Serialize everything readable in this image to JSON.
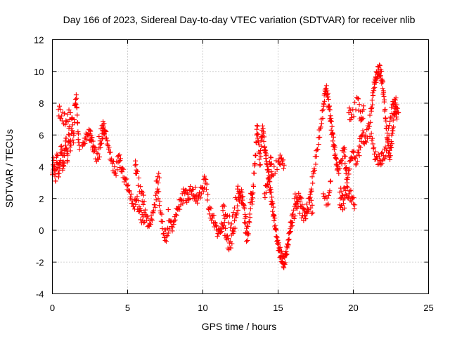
{
  "chart_data": {
    "type": "scatter",
    "title": "Day 166 of 2023, Sidereal Day-to-day VTEC variation (SDTVAR) for receiver nlib",
    "xlabel": "GPS time / hours",
    "ylabel": "SDTVAR / TECUs",
    "xlim": [
      0,
      25
    ],
    "ylim": [
      -4,
      12
    ],
    "xticks": [
      0,
      5,
      10,
      15,
      20,
      25
    ],
    "yticks": [
      -4,
      -2,
      0,
      2,
      4,
      6,
      8,
      10,
      12
    ],
    "grid": true,
    "marker": "plus",
    "color": "#ff0000",
    "series": [
      {
        "name": "SDTVAR",
        "points": [
          [
            0.0,
            3.5
          ],
          [
            0.1,
            4.4
          ],
          [
            0.2,
            3.1
          ],
          [
            0.3,
            4.8
          ],
          [
            0.4,
            3.6
          ],
          [
            0.5,
            4.2
          ],
          [
            0.6,
            5.3
          ],
          [
            0.7,
            3.9
          ],
          [
            0.8,
            4.7
          ],
          [
            0.9,
            5.8
          ],
          [
            1.0,
            4.3
          ],
          [
            1.1,
            6.4
          ],
          [
            1.2,
            5.0
          ],
          [
            1.3,
            7.1
          ],
          [
            1.4,
            5.5
          ],
          [
            1.5,
            7.9
          ],
          [
            1.6,
            8.3
          ],
          [
            1.7,
            6.2
          ],
          [
            1.8,
            5.1
          ],
          [
            0.4,
            7.6
          ],
          [
            0.6,
            7.2
          ],
          [
            0.9,
            6.9
          ],
          [
            1.2,
            7.4
          ],
          [
            2.0,
            5.3
          ],
          [
            2.2,
            5.8
          ],
          [
            2.4,
            6.1
          ],
          [
            2.6,
            5.6
          ],
          [
            2.8,
            5.0
          ],
          [
            3.0,
            4.5
          ],
          [
            3.2,
            5.2
          ],
          [
            3.4,
            6.5
          ],
          [
            3.6,
            5.8
          ],
          [
            3.8,
            4.9
          ],
          [
            4.0,
            4.2
          ],
          [
            4.2,
            3.6
          ],
          [
            4.4,
            4.7
          ],
          [
            4.6,
            3.9
          ],
          [
            4.8,
            3.3
          ],
          [
            5.0,
            2.8
          ],
          [
            5.2,
            2.1
          ],
          [
            5.4,
            1.5
          ],
          [
            5.6,
            1.9
          ],
          [
            5.8,
            1.2
          ],
          [
            6.0,
            0.6
          ],
          [
            6.2,
            1.0
          ],
          [
            6.4,
            0.3
          ],
          [
            6.6,
            0.7
          ],
          [
            6.8,
            1.6
          ],
          [
            7.0,
            2.6
          ],
          [
            7.2,
            1.1
          ],
          [
            7.4,
            -0.2
          ],
          [
            7.6,
            -0.4
          ],
          [
            7.8,
            0.6
          ],
          [
            8.0,
            0.2
          ],
          [
            8.2,
            1.0
          ],
          [
            8.4,
            1.5
          ],
          [
            8.6,
            1.9
          ],
          [
            8.8,
            2.3
          ],
          [
            9.0,
            2.0
          ],
          [
            9.2,
            2.5
          ],
          [
            9.4,
            2.2
          ],
          [
            9.6,
            1.9
          ],
          [
            9.8,
            2.3
          ],
          [
            10.0,
            2.7
          ],
          [
            10.2,
            3.2
          ],
          [
            10.4,
            1.3
          ],
          [
            10.6,
            0.9
          ],
          [
            10.8,
            0.5
          ],
          [
            11.0,
            -0.2
          ],
          [
            11.2,
            0.1
          ],
          [
            11.4,
            0.3
          ],
          [
            11.6,
            -0.6
          ],
          [
            11.8,
            -1.1
          ],
          [
            12.0,
            -0.2
          ],
          [
            12.2,
            0.8
          ],
          [
            12.4,
            1.9
          ],
          [
            12.6,
            2.4
          ],
          [
            12.8,
            1.0
          ],
          [
            13.0,
            -0.3
          ],
          [
            3.3,
            6.6
          ],
          [
            3.5,
            6.3
          ],
          [
            3.1,
            5.9
          ],
          [
            2.5,
            6.3
          ],
          [
            2.7,
            5.3
          ],
          [
            4.5,
            4.4
          ],
          [
            5.5,
            4.1
          ],
          [
            5.6,
            3.6
          ],
          [
            5.9,
            2.3
          ],
          [
            6.1,
            1.8
          ],
          [
            6.9,
            3.1
          ],
          [
            7.1,
            3.3
          ],
          [
            7.7,
            1.3
          ],
          [
            8.7,
            2.6
          ],
          [
            9.5,
            2.7
          ],
          [
            10.1,
            3.4
          ],
          [
            11.3,
            1.5
          ],
          [
            11.5,
            1.0
          ],
          [
            11.9,
            0.4
          ],
          [
            12.3,
            2.6
          ],
          [
            12.5,
            2.2
          ],
          [
            12.7,
            1.6
          ],
          [
            12.9,
            -0.7
          ],
          [
            13.1,
            0.5
          ],
          [
            13.2,
            2.3
          ],
          [
            13.3,
            1.8
          ],
          [
            13.4,
            3.6
          ],
          [
            13.5,
            4.7
          ],
          [
            13.6,
            6.6
          ],
          [
            13.7,
            5.5
          ],
          [
            13.8,
            4.1
          ],
          [
            13.9,
            5.9
          ],
          [
            14.0,
            6.4
          ],
          [
            14.1,
            5.2
          ],
          [
            14.2,
            4.7
          ],
          [
            14.3,
            3.8
          ],
          [
            14.4,
            3.1
          ],
          [
            14.5,
            2.4
          ],
          [
            14.6,
            1.7
          ],
          [
            14.7,
            1.0
          ],
          [
            14.8,
            0.3
          ],
          [
            14.9,
            -0.4
          ],
          [
            15.0,
            -0.9
          ],
          [
            15.1,
            -1.3
          ],
          [
            15.2,
            -1.6
          ],
          [
            15.3,
            -1.8
          ],
          [
            15.4,
            -2.1
          ],
          [
            15.5,
            -1.6
          ],
          [
            15.6,
            -1.1
          ],
          [
            15.7,
            -0.6
          ],
          [
            15.8,
            0.1
          ],
          [
            15.9,
            0.5
          ],
          [
            16.0,
            0.9
          ],
          [
            16.2,
            1.4
          ],
          [
            16.4,
            2.1
          ],
          [
            16.6,
            1.6
          ],
          [
            16.8,
            0.9
          ],
          [
            17.0,
            1.3
          ],
          [
            17.2,
            2.6
          ],
          [
            17.4,
            3.9
          ],
          [
            17.6,
            5.1
          ],
          [
            17.8,
            6.4
          ],
          [
            18.0,
            7.6
          ],
          [
            18.1,
            8.6
          ],
          [
            18.2,
            8.9
          ],
          [
            18.3,
            8.4
          ],
          [
            18.4,
            7.6
          ],
          [
            18.5,
            6.9
          ],
          [
            18.6,
            6.1
          ],
          [
            18.7,
            5.4
          ],
          [
            18.8,
            4.8
          ],
          [
            18.9,
            4.1
          ],
          [
            19.0,
            3.8
          ],
          [
            19.2,
            4.4
          ],
          [
            19.4,
            5.2
          ],
          [
            19.5,
            3.9
          ],
          [
            19.6,
            3.2
          ],
          [
            19.8,
            4.4
          ],
          [
            20.0,
            4.9
          ],
          [
            20.2,
            4.2
          ],
          [
            20.4,
            5.3
          ],
          [
            20.6,
            6.0
          ],
          [
            20.8,
            5.6
          ],
          [
            21.0,
            6.4
          ],
          [
            21.2,
            7.5
          ],
          [
            21.3,
            8.5
          ],
          [
            21.4,
            9.2
          ],
          [
            21.5,
            9.6
          ],
          [
            21.6,
            9.9
          ],
          [
            21.7,
            10.1
          ],
          [
            21.8,
            10.0
          ],
          [
            21.9,
            9.5
          ],
          [
            22.0,
            8.8
          ],
          [
            22.1,
            7.6
          ],
          [
            22.2,
            6.4
          ],
          [
            22.3,
            5.5
          ],
          [
            22.4,
            4.6
          ],
          [
            22.5,
            5.2
          ],
          [
            22.6,
            6.1
          ],
          [
            22.7,
            7.2
          ],
          [
            22.8,
            7.8
          ],
          [
            22.9,
            7.0
          ],
          [
            14.1,
            2.3
          ],
          [
            14.3,
            2.9
          ],
          [
            14.5,
            4.6
          ],
          [
            14.6,
            3.5
          ],
          [
            15.0,
            4.3
          ],
          [
            15.2,
            4.5
          ],
          [
            15.4,
            4.1
          ],
          [
            16.1,
            2.0
          ],
          [
            16.3,
            1.8
          ],
          [
            16.7,
            0.6
          ],
          [
            17.1,
            2.0
          ],
          [
            17.3,
            1.1
          ],
          [
            18.0,
            2.3
          ],
          [
            18.3,
            1.6
          ],
          [
            18.5,
            3.1
          ],
          [
            19.1,
            2.4
          ],
          [
            19.3,
            2.2
          ],
          [
            19.5,
            2.5
          ],
          [
            19.7,
            2.3
          ],
          [
            19.9,
            2.1
          ],
          [
            20.1,
            1.6
          ],
          [
            19.4,
            1.4
          ],
          [
            19.1,
            1.6
          ],
          [
            19.7,
            7.4
          ],
          [
            19.9,
            7.1
          ],
          [
            20.3,
            8.3
          ],
          [
            20.5,
            6.9
          ],
          [
            20.7,
            7.6
          ],
          [
            21.2,
            6.1
          ],
          [
            21.4,
            4.8
          ],
          [
            21.6,
            4.5
          ],
          [
            21.8,
            4.4
          ],
          [
            22.0,
            4.7
          ],
          [
            22.2,
            5.0
          ],
          [
            22.4,
            6.6
          ],
          [
            22.6,
            7.9
          ],
          [
            22.8,
            8.2
          ],
          [
            23.0,
            7.4
          ],
          [
            20.4,
            4.7
          ],
          [
            21.1,
            5.9
          ]
        ]
      }
    ]
  }
}
